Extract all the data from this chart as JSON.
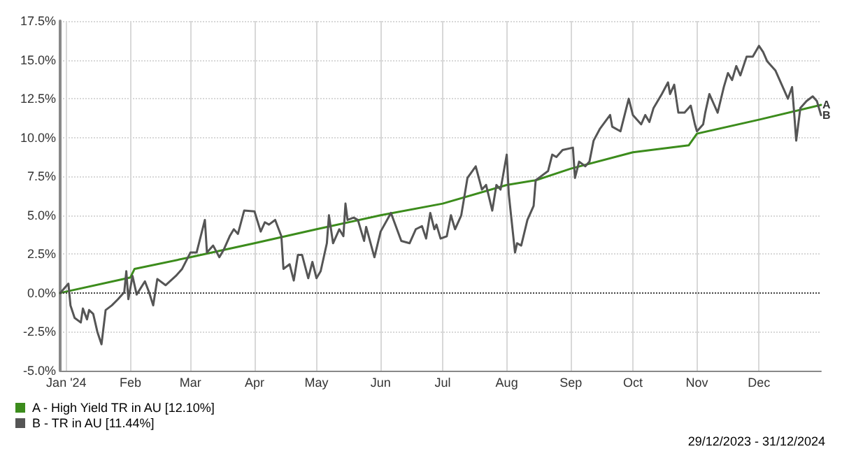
{
  "chart_data": {
    "type": "line",
    "xlim": [
      "2023-12-29",
      "2024-12-31"
    ],
    "xticks": [
      {
        "value": "2024-01-01",
        "label": "Jan '24"
      },
      {
        "value": "2024-02-01",
        "label": "Feb"
      },
      {
        "value": "2024-03-01",
        "label": "Mar"
      },
      {
        "value": "2024-04-01",
        "label": "Apr"
      },
      {
        "value": "2024-05-01",
        "label": "May"
      },
      {
        "value": "2024-06-01",
        "label": "Jun"
      },
      {
        "value": "2024-07-01",
        "label": "Jul"
      },
      {
        "value": "2024-08-01",
        "label": "Aug"
      },
      {
        "value": "2024-09-01",
        "label": "Sep"
      },
      {
        "value": "2024-10-01",
        "label": "Oct"
      },
      {
        "value": "2024-11-01",
        "label": "Nov"
      },
      {
        "value": "2024-12-01",
        "label": "Dec"
      }
    ],
    "ylim": [
      -5,
      17.5
    ],
    "yticks": [
      {
        "value": -5,
        "label": "-5.0%"
      },
      {
        "value": -2.5,
        "label": "-2.5%"
      },
      {
        "value": 0,
        "label": "0.0%"
      },
      {
        "value": 2.5,
        "label": "2.5%"
      },
      {
        "value": 5,
        "label": "5.0%"
      },
      {
        "value": 7.5,
        "label": "7.5%"
      },
      {
        "value": 10,
        "label": "10.0%"
      },
      {
        "value": 12.5,
        "label": "12.5%"
      },
      {
        "value": 15,
        "label": "15.0%"
      },
      {
        "value": 17.5,
        "label": "17.5%"
      }
    ],
    "grid": true,
    "legend": "bottom left",
    "marker": "none",
    "line_style": "solid",
    "series": [
      {
        "name": "A - High Yield TR in AU [12.10%]",
        "color": "#3c8c1c",
        "x": [
          "2023-12-29",
          "2024-02-01",
          "2024-02-03",
          "2024-03-01",
          "2024-04-01",
          "2024-05-01",
          "2024-06-01",
          "2024-07-01",
          "2024-08-01",
          "2024-08-15",
          "2024-09-01",
          "2024-10-01",
          "2024-10-28",
          "2024-11-01",
          "2024-12-01",
          "2024-12-31"
        ],
        "values": [
          0,
          1.0,
          1.55,
          2.3,
          3.2,
          4.1,
          5.0,
          5.75,
          6.95,
          7.25,
          8.0,
          9.05,
          9.5,
          10.25,
          11.15,
          12.1
        ]
      },
      {
        "name": "B - TR in AU [11.44%]",
        "color": "#555555",
        "x": [
          "2023-12-29",
          "2024-01-02",
          "2024-01-03",
          "2024-01-05",
          "2024-01-08",
          "2024-01-09",
          "2024-01-11",
          "2024-01-12",
          "2024-01-14",
          "2024-01-16",
          "2024-01-18",
          "2024-01-20",
          "2024-01-23",
          "2024-01-26",
          "2024-01-29",
          "2024-01-30",
          "2024-01-31",
          "2024-02-02",
          "2024-02-04",
          "2024-02-08",
          "2024-02-10",
          "2024-02-12",
          "2024-02-14",
          "2024-02-18",
          "2024-02-23",
          "2024-02-26",
          "2024-03-01",
          "2024-03-04",
          "2024-03-08",
          "2024-03-09",
          "2024-03-12",
          "2024-03-15",
          "2024-03-17",
          "2024-03-20",
          "2024-03-22",
          "2024-03-24",
          "2024-03-27",
          "2024-04-01",
          "2024-04-04",
          "2024-04-06",
          "2024-04-08",
          "2024-04-11",
          "2024-04-14",
          "2024-04-15",
          "2024-04-18",
          "2024-04-20",
          "2024-04-22",
          "2024-04-24",
          "2024-04-27",
          "2024-04-29",
          "2024-05-01",
          "2024-05-03",
          "2024-05-06",
          "2024-05-07",
          "2024-05-09",
          "2024-05-12",
          "2024-05-14",
          "2024-05-15",
          "2024-05-16",
          "2024-05-19",
          "2024-05-21",
          "2024-05-24",
          "2024-05-25",
          "2024-05-29",
          "2024-06-01",
          "2024-06-06",
          "2024-06-11",
          "2024-06-15",
          "2024-06-18",
          "2024-06-21",
          "2024-06-23",
          "2024-06-25",
          "2024-06-27",
          "2024-06-28",
          "2024-06-30",
          "2024-07-03",
          "2024-07-05",
          "2024-07-07",
          "2024-07-10",
          "2024-07-13",
          "2024-07-17",
          "2024-07-20",
          "2024-07-22",
          "2024-07-25",
          "2024-07-27",
          "2024-07-29",
          "2024-08-01",
          "2024-08-02",
          "2024-08-05",
          "2024-08-06",
          "2024-08-08",
          "2024-08-11",
          "2024-08-14",
          "2024-08-15",
          "2024-08-18",
          "2024-08-21",
          "2024-08-23",
          "2024-08-25",
          "2024-08-28",
          "2024-09-02",
          "2024-09-03",
          "2024-09-05",
          "2024-09-08",
          "2024-09-10",
          "2024-09-12",
          "2024-09-15",
          "2024-09-20",
          "2024-09-21",
          "2024-09-25",
          "2024-09-29",
          "2024-10-01",
          "2024-10-05",
          "2024-10-07",
          "2024-10-09",
          "2024-10-11",
          "2024-10-15",
          "2024-10-18",
          "2024-10-19",
          "2024-10-21",
          "2024-10-23",
          "2024-10-26",
          "2024-10-29",
          "2024-10-31",
          "2024-11-01",
          "2024-11-04",
          "2024-11-05",
          "2024-11-07",
          "2024-11-11",
          "2024-11-14",
          "2024-11-16",
          "2024-11-18",
          "2024-11-20",
          "2024-11-22",
          "2024-11-25",
          "2024-11-28",
          "2024-12-01",
          "2024-12-03",
          "2024-12-05",
          "2024-12-09",
          "2024-12-12",
          "2024-12-15",
          "2024-12-17",
          "2024-12-18",
          "2024-12-19",
          "2024-12-21",
          "2024-12-24",
          "2024-12-27",
          "2024-12-29",
          "2024-12-31"
        ],
        "values": [
          0,
          0.6,
          -0.8,
          -1.6,
          -1.9,
          -1.0,
          -1.7,
          -1.1,
          -1.35,
          -2.5,
          -3.3,
          -1.1,
          -0.8,
          -0.4,
          0.05,
          1.4,
          -0.4,
          1.1,
          -0.1,
          0.75,
          0.05,
          -0.8,
          0.9,
          0.5,
          1.1,
          1.55,
          2.6,
          2.6,
          4.7,
          2.6,
          3.05,
          2.3,
          2.75,
          3.65,
          4.1,
          3.8,
          5.3,
          5.25,
          3.95,
          4.55,
          4.4,
          4.7,
          3.65,
          1.55,
          1.85,
          0.8,
          2.45,
          2.45,
          0.95,
          2.0,
          0.95,
          1.4,
          3.2,
          5.0,
          3.2,
          4.1,
          3.65,
          5.75,
          4.7,
          4.85,
          4.7,
          3.35,
          4.25,
          2.3,
          3.95,
          5.15,
          3.35,
          3.2,
          4.1,
          4.3,
          3.5,
          5.15,
          4.1,
          4.4,
          3.5,
          3.65,
          5.0,
          4.1,
          5.0,
          7.4,
          8.15,
          6.65,
          6.95,
          5.3,
          6.95,
          6.65,
          8.9,
          6.35,
          2.6,
          3.2,
          3.05,
          4.7,
          5.6,
          7.25,
          7.55,
          7.85,
          8.9,
          8.75,
          9.2,
          9.35,
          7.4,
          8.45,
          8.15,
          8.45,
          9.8,
          10.55,
          11.45,
          10.7,
          10.4,
          12.5,
          11.45,
          10.85,
          11.45,
          11.0,
          11.9,
          12.8,
          13.55,
          12.8,
          13.4,
          11.6,
          11.6,
          12.05,
          10.85,
          10.4,
          10.85,
          11.6,
          12.8,
          11.6,
          13.25,
          14.15,
          13.7,
          14.6,
          14.0,
          15.2,
          15.2,
          15.9,
          15.5,
          14.9,
          14.3,
          13.4,
          12.5,
          13.25,
          11.6,
          9.8,
          11.9,
          12.35,
          12.65,
          12.35,
          11.44
        ]
      }
    ],
    "ref_lines": [
      {
        "axis": "y",
        "value": 0,
        "color": "#444444",
        "line_style": "dotted"
      }
    ],
    "annotations": [
      {
        "text": "A",
        "x": "2024-12-31",
        "y": 12.1
      },
      {
        "text": "B",
        "x": "2024-12-31",
        "y": 11.44
      },
      "29/12/2023 - 31/12/2024"
    ]
  }
}
